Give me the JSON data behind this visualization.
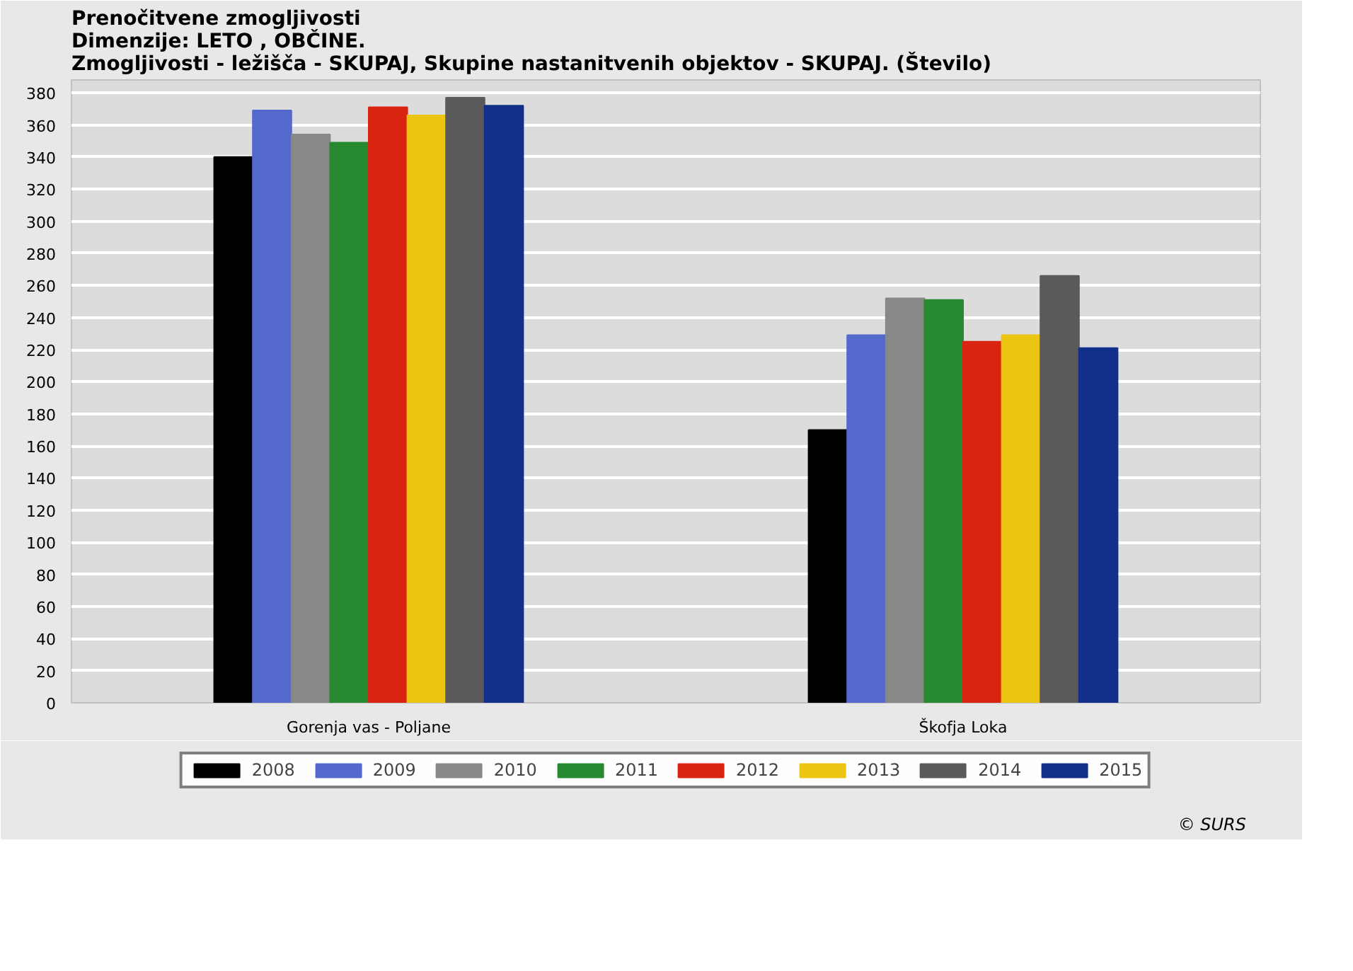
{
  "chart_data": {
    "type": "bar",
    "title": "Prenočitvene zmogljivosti\nDimenzije: LETO , OBČINE.\nZmogljivosti - ležišča - SKUPAJ, Skupine nastanitvenih objektov - SKUPAJ. (Število)",
    "categories": [
      "Gorenja vas - Poljane",
      "Škofja Loka"
    ],
    "series": [
      {
        "name": "2008",
        "color": "#000000",
        "values": [
          340,
          170
        ]
      },
      {
        "name": "2009",
        "color": "#5469cc",
        "values": [
          369,
          229
        ]
      },
      {
        "name": "2010",
        "color": "#888888",
        "values": [
          354,
          252
        ]
      },
      {
        "name": "2011",
        "color": "#278a30",
        "values": [
          349,
          251
        ]
      },
      {
        "name": "2012",
        "color": "#d82410",
        "values": [
          371,
          225
        ]
      },
      {
        "name": "2013",
        "color": "#ecc412",
        "values": [
          366,
          229
        ]
      },
      {
        "name": "2014",
        "color": "#5a5a5a",
        "values": [
          377,
          266
        ]
      },
      {
        "name": "2015",
        "color": "#12308a",
        "values": [
          372,
          221
        ]
      }
    ],
    "ylim": [
      0,
      388
    ],
    "yticks": [
      0,
      20,
      40,
      60,
      80,
      100,
      120,
      140,
      160,
      180,
      200,
      220,
      240,
      260,
      280,
      300,
      320,
      340,
      360,
      380
    ],
    "grid": "y",
    "legend": "bottom",
    "annotations": [
      "© SURS"
    ]
  }
}
